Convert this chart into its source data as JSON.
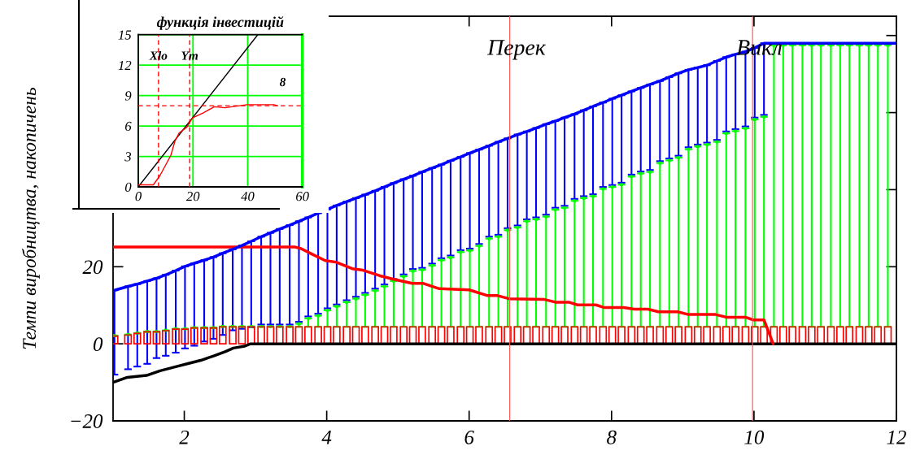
{
  "chart_data": [
    {
      "type": "line",
      "ylabel": "Темпи виробництва, накопичень",
      "xlim": [
        1,
        12
      ],
      "xticks": [
        2,
        4,
        6,
        8,
        10,
        12
      ],
      "ylim": [
        -20,
        85
      ],
      "yticks": [
        {
          "value": -20,
          "label": "−20"
        },
        0,
        20,
        {
          "value": 40,
          "label": null
        },
        {
          "value": 60,
          "label": null
        },
        {
          "value": 80,
          "label": null
        }
      ],
      "ref_lines": [
        {
          "axis": "x",
          "value": 6.57,
          "label": "Перек",
          "color": "#ff5050"
        },
        {
          "axis": "x",
          "value": 9.98,
          "label": "Викл",
          "color": "#ff5050"
        }
      ],
      "series": [
        {
          "type": "scatter",
          "marker": "square",
          "color": "#00ff00",
          "x": [
            1.02,
            1.21,
            1.34,
            1.48,
            1.61,
            1.74,
            1.88,
            2.01,
            2.14,
            2.28,
            2.41,
            2.54,
            2.68,
            2.81,
            2.94,
            3.08,
            3.21,
            3.34,
            3.48,
            3.61,
            3.74,
            3.88,
            4.01,
            4.14,
            4.28,
            4.41,
            4.54,
            4.68,
            4.81,
            4.94,
            5.08,
            5.21,
            5.34,
            5.48,
            5.61,
            5.74,
            5.88,
            6.01,
            6.14,
            6.28,
            6.41,
            6.54,
            6.68,
            6.81,
            6.94,
            7.08,
            7.21,
            7.34,
            7.48,
            7.61,
            7.74,
            7.88,
            8.01,
            8.14,
            8.28,
            8.41,
            8.54,
            8.68,
            8.81,
            8.94,
            9.08,
            9.21,
            9.34,
            9.48,
            9.61,
            9.74,
            9.88,
            10.01,
            10.14,
            10.28,
            10.41,
            10.54,
            10.68,
            10.81,
            10.94,
            11.08,
            11.21,
            11.34,
            11.48,
            11.61,
            11.74,
            11.88
          ],
          "values": [
            2.1,
            2.4,
            2.8,
            3.2,
            3.2,
            3.5,
            3.9,
            3.9,
            4.2,
            4.2,
            4.2,
            4.5,
            4.5,
            4.5,
            4.5,
            4.5,
            4.5,
            4.5,
            4.5,
            5.2,
            6.6,
            7.3,
            8.7,
            9.7,
            10.8,
            11.7,
            12.7,
            13.8,
            14.9,
            16.3,
            17.5,
            18.9,
            19.2,
            20.3,
            21.7,
            22.4,
            23.8,
            24.2,
            25.4,
            27.3,
            27.8,
            29.5,
            30.2,
            31.8,
            32.3,
            33.0,
            34.8,
            35.3,
            37.1,
            37.8,
            38.3,
            40.2,
            40.7,
            41.3,
            43.4,
            44.2,
            44.6,
            46.9,
            47.6,
            48.3,
            50.5,
            51.2,
            51.7,
            52.4,
            54.6,
            55.2,
            55.9,
            58.2,
            58.9,
            77.5,
            77.5,
            77.5,
            77.5,
            77.5,
            77.5,
            77.5,
            77.5,
            77.5,
            77.5,
            77.5,
            77.5,
            77.5
          ],
          "errors": [
            [
              2.0,
              2.1
            ],
            [
              2.3,
              2.4
            ],
            [
              2.7,
              2.8
            ],
            [
              3.1,
              3.2
            ],
            [
              3.1,
              3.2
            ],
            [
              3.4,
              3.5
            ],
            [
              3.8,
              3.9
            ],
            [
              3.8,
              3.9
            ],
            [
              4.1,
              4.2
            ],
            [
              4.1,
              4.2
            ],
            [
              4.1,
              4.2
            ],
            [
              4.4,
              4.5
            ],
            [
              4.4,
              4.5
            ],
            [
              4.4,
              4.5
            ],
            [
              4.4,
              4.5
            ],
            [
              4.4,
              4.5
            ],
            [
              4.4,
              4.5
            ],
            [
              4.4,
              4.5
            ],
            [
              4.4,
              4.5
            ],
            [
              4.4,
              5.2
            ],
            [
              4.4,
              6.6
            ],
            [
              4.4,
              7.3
            ],
            [
              4.4,
              8.7
            ],
            [
              4.4,
              9.7
            ],
            [
              4.4,
              10.8
            ],
            [
              4.4,
              11.7
            ],
            [
              4.4,
              12.7
            ],
            [
              4.4,
              13.8
            ],
            [
              4.4,
              14.9
            ],
            [
              4.4,
              16.3
            ],
            [
              4.4,
              17.5
            ],
            [
              4.4,
              18.9
            ],
            [
              4.4,
              19.2
            ],
            [
              4.4,
              20.3
            ],
            [
              4.4,
              21.7
            ],
            [
              4.4,
              22.4
            ],
            [
              4.4,
              23.8
            ],
            [
              4.4,
              24.2
            ],
            [
              4.4,
              25.4
            ],
            [
              4.4,
              27.3
            ],
            [
              4.4,
              27.8
            ],
            [
              4.4,
              29.5
            ],
            [
              4.4,
              30.2
            ],
            [
              4.4,
              31.8
            ],
            [
              4.4,
              32.3
            ],
            [
              4.4,
              33.0
            ],
            [
              4.4,
              34.8
            ],
            [
              4.4,
              35.3
            ],
            [
              4.4,
              37.1
            ],
            [
              4.4,
              37.8
            ],
            [
              4.4,
              38.3
            ],
            [
              4.4,
              40.2
            ],
            [
              4.4,
              40.7
            ],
            [
              4.4,
              41.3
            ],
            [
              4.4,
              43.4
            ],
            [
              4.4,
              44.2
            ],
            [
              4.4,
              44.6
            ],
            [
              4.4,
              46.9
            ],
            [
              4.4,
              47.6
            ],
            [
              4.4,
              48.3
            ],
            [
              4.4,
              50.5
            ],
            [
              4.4,
              51.2
            ],
            [
              4.4,
              51.7
            ],
            [
              4.4,
              52.4
            ],
            [
              4.4,
              54.6
            ],
            [
              4.4,
              55.2
            ],
            [
              4.4,
              55.9
            ],
            [
              4.4,
              58.2
            ],
            [
              4.4,
              58.9
            ],
            [
              4.4,
              77.5
            ],
            [
              4.4,
              77.5
            ],
            [
              4.4,
              77.5
            ],
            [
              4.4,
              77.5
            ],
            [
              4.4,
              77.5
            ],
            [
              4.4,
              77.5
            ],
            [
              4.4,
              77.5
            ],
            [
              4.4,
              77.5
            ],
            [
              4.4,
              77.5
            ],
            [
              4.4,
              77.5
            ],
            [
              4.4,
              77.5
            ],
            [
              4.4,
              77.5
            ],
            [
              4.4,
              77.5
            ]
          ]
        },
        {
          "type": "bar",
          "color": "#ff0000",
          "x": [
            1.02,
            1.21,
            1.34,
            1.48,
            1.61,
            1.74,
            1.88,
            2.01,
            2.14,
            2.28,
            2.41,
            2.54,
            2.68,
            2.81,
            2.94,
            3.08,
            3.21,
            3.34,
            3.48,
            3.61,
            3.74,
            3.88,
            4.01,
            4.14,
            4.28,
            4.41,
            4.54,
            4.68,
            4.81,
            4.94,
            5.08,
            5.21,
            5.34,
            5.48,
            5.61,
            5.74,
            5.88,
            6.01,
            6.14,
            6.28,
            6.41,
            6.54,
            6.68,
            6.81,
            6.94,
            7.08,
            7.21,
            7.34,
            7.48,
            7.61,
            7.74,
            7.88,
            8.01,
            8.14,
            8.28,
            8.41,
            8.54,
            8.68,
            8.81,
            8.94,
            9.08,
            9.21,
            9.34,
            9.48,
            9.61,
            9.74,
            9.88,
            10.01,
            10.14,
            10.28,
            10.41,
            10.54,
            10.68,
            10.81,
            10.94,
            11.08,
            11.21,
            11.34,
            11.48,
            11.61,
            11.74,
            11.88
          ],
          "values": [
            2.0,
            2.3,
            2.7,
            3.1,
            3.1,
            3.4,
            3.8,
            3.8,
            4.1,
            4.1,
            4.1,
            4.4,
            4.4,
            4.4,
            4.4,
            4.4,
            4.4,
            4.4,
            4.4,
            4.4,
            4.4,
            4.4,
            4.4,
            4.4,
            4.4,
            4.4,
            4.4,
            4.4,
            4.4,
            4.4,
            4.4,
            4.4,
            4.4,
            4.4,
            4.4,
            4.4,
            4.4,
            4.4,
            4.4,
            4.4,
            4.4,
            4.4,
            4.4,
            4.4,
            4.4,
            4.4,
            4.4,
            4.4,
            4.4,
            4.4,
            4.4,
            4.4,
            4.4,
            4.4,
            4.4,
            4.4,
            4.4,
            4.4,
            4.4,
            4.4,
            4.4,
            4.4,
            4.4,
            4.4,
            4.4,
            4.4,
            4.4,
            4.4,
            4.4,
            4.4,
            4.4,
            4.4,
            4.4,
            4.4,
            4.4,
            4.4,
            4.4,
            4.4,
            4.4,
            4.4,
            4.4,
            4.4
          ]
        },
        {
          "type": "line",
          "color": "#000000",
          "x": [
            1.0,
            1.2,
            1.47,
            1.66,
            1.89,
            2.04,
            2.23,
            2.42,
            2.58,
            2.69,
            2.85,
            2.93,
            12
          ],
          "values": [
            -10.0,
            -8.7,
            -8.2,
            -7.0,
            -5.9,
            -5.2,
            -4.3,
            -3.1,
            -2.0,
            -1.1,
            -0.6,
            0,
            0
          ]
        },
        {
          "type": "line",
          "color": "#ff0000",
          "x": [
            1.0,
            3.56,
            3.64,
            3.79,
            3.98,
            4.13,
            4.36,
            4.51,
            4.74,
            4.93,
            5.2,
            5.35,
            5.58,
            6.0,
            6.26,
            6.4,
            6.56,
            7.06,
            7.21,
            7.4,
            7.52,
            7.78,
            7.9,
            8.17,
            8.32,
            8.51,
            8.66,
            8.93,
            9.08,
            9.46,
            9.61,
            9.88,
            9.99,
            10.14,
            10.27
          ],
          "values": [
            25.1,
            25.1,
            24.7,
            23.3,
            21.6,
            21.2,
            19.5,
            19.1,
            17.7,
            16.8,
            15.7,
            15.7,
            14.3,
            14.0,
            12.5,
            12.5,
            11.7,
            11.5,
            10.8,
            10.8,
            10.1,
            10.1,
            9.4,
            9.4,
            9.0,
            9.0,
            8.3,
            8.3,
            7.6,
            7.6,
            6.9,
            6.9,
            6.2,
            6.2,
            0
          ]
        },
        {
          "type": "line",
          "color": "#0000ff",
          "x": [
            1.02,
            1.21,
            1.34,
            1.48,
            1.61,
            1.74,
            1.88,
            2.01,
            2.14,
            2.28,
            2.41,
            2.54,
            2.68,
            2.81,
            2.94,
            3.08,
            3.21,
            3.34,
            3.48,
            3.61,
            3.74,
            3.88,
            4.01,
            4.14,
            4.28,
            4.41,
            4.54,
            4.68,
            4.81,
            4.94,
            5.08,
            5.21,
            5.34,
            5.48,
            5.61,
            5.74,
            5.88,
            6.01,
            6.14,
            6.28,
            6.41,
            6.54,
            6.68,
            6.81,
            6.94,
            7.08,
            7.21,
            7.34,
            7.48,
            7.61,
            7.74,
            7.88,
            8.01,
            8.14,
            8.28,
            8.41,
            8.54,
            8.68,
            8.81,
            8.94,
            9.08,
            9.21,
            9.34,
            9.48,
            9.61,
            9.74,
            9.88,
            10.01,
            10.14,
            10.28,
            10.41,
            10.54,
            10.68,
            10.81,
            10.94,
            11.08,
            11.21,
            11.34,
            11.48,
            11.61,
            11.74,
            11.88,
            12
          ],
          "values": [
            13.9,
            14.9,
            15.5,
            16.3,
            17.0,
            17.9,
            19.0,
            20.1,
            20.9,
            21.7,
            22.5,
            23.5,
            24.5,
            25.5,
            26.6,
            27.8,
            28.8,
            29.8,
            30.8,
            31.8,
            32.8,
            33.9,
            34.9,
            35.9,
            36.9,
            37.8,
            38.7,
            39.7,
            40.7,
            41.7,
            42.7,
            43.6,
            44.6,
            45.6,
            46.5,
            47.5,
            48.5,
            49.5,
            50.4,
            51.4,
            52.4,
            53.3,
            54.3,
            55.1,
            56.0,
            57.0,
            57.8,
            58.7,
            59.6,
            60.6,
            61.6,
            62.6,
            63.6,
            64.5,
            65.5,
            66.4,
            67.3,
            68.2,
            69.2,
            70.2,
            71.1,
            71.7,
            72.3,
            73.4,
            74.4,
            75.1,
            75.8,
            76.8,
            78.0,
            78.0,
            78.0,
            78.0,
            78.0,
            78.0,
            78.0,
            78.0,
            78.0,
            78.0,
            78.0,
            78.0,
            78.0,
            78.0,
            78.0
          ],
          "errors": [
            [
              -8.0,
              13.9
            ],
            [
              -6.6,
              14.9
            ],
            [
              -5.9,
              15.5
            ],
            [
              -5.2,
              16.3
            ],
            [
              -3.7,
              17.0
            ],
            [
              -3.1,
              17.9
            ],
            [
              -2.3,
              19.0
            ],
            [
              -1.2,
              20.1
            ],
            [
              -0.5,
              20.9
            ],
            [
              0.6,
              21.7
            ],
            [
              1.3,
              22.5
            ],
            [
              2.3,
              23.5
            ],
            [
              3.5,
              24.5
            ],
            [
              3.9,
              25.5
            ],
            [
              4.3,
              26.6
            ],
            [
              5.0,
              27.8
            ],
            [
              5.0,
              28.8
            ],
            [
              5.0,
              29.8
            ],
            [
              5.0,
              30.8
            ],
            [
              5.7,
              31.8
            ],
            [
              7.1,
              32.8
            ],
            [
              7.8,
              33.9
            ],
            [
              9.2,
              34.9
            ],
            [
              10.2,
              35.9
            ],
            [
              11.3,
              36.9
            ],
            [
              12.2,
              37.8
            ],
            [
              13.2,
              38.7
            ],
            [
              14.3,
              39.7
            ],
            [
              15.4,
              40.7
            ],
            [
              16.8,
              41.7
            ],
            [
              18.0,
              42.7
            ],
            [
              19.4,
              43.6
            ],
            [
              19.7,
              44.6
            ],
            [
              20.8,
              45.6
            ],
            [
              22.2,
              46.5
            ],
            [
              22.9,
              47.5
            ],
            [
              24.3,
              48.5
            ],
            [
              24.7,
              49.5
            ],
            [
              25.9,
              50.4
            ],
            [
              27.8,
              51.4
            ],
            [
              28.3,
              52.4
            ],
            [
              30.0,
              53.3
            ],
            [
              30.7,
              54.3
            ],
            [
              32.3,
              55.1
            ],
            [
              32.8,
              56.0
            ],
            [
              33.5,
              57.0
            ],
            [
              35.3,
              57.8
            ],
            [
              35.8,
              58.7
            ],
            [
              37.6,
              59.6
            ],
            [
              38.3,
              60.6
            ],
            [
              38.8,
              61.6
            ],
            [
              40.7,
              62.6
            ],
            [
              41.2,
              63.6
            ],
            [
              41.8,
              64.5
            ],
            [
              43.9,
              65.5
            ],
            [
              44.7,
              66.4
            ],
            [
              45.1,
              67.3
            ],
            [
              47.4,
              68.2
            ],
            [
              48.1,
              69.2
            ],
            [
              48.8,
              70.2
            ],
            [
              51.0,
              71.1
            ],
            [
              51.7,
              71.7
            ],
            [
              52.2,
              72.3
            ],
            [
              52.9,
              73.4
            ],
            [
              55.1,
              74.4
            ],
            [
              55.7,
              75.1
            ],
            [
              56.4,
              75.8
            ],
            [
              58.7,
              76.8
            ],
            [
              59.4,
              78.0
            ],
            null,
            null,
            null,
            null,
            null,
            null,
            null,
            null,
            null,
            null,
            null,
            null,
            null,
            null
          ]
        }
      ]
    },
    {
      "type": "line",
      "title": "функція інвестицій",
      "xlim": [
        0,
        60
      ],
      "xticks": [
        0,
        20,
        40,
        60
      ],
      "ylim": [
        0,
        15
      ],
      "yticks": [
        0,
        3,
        6,
        9,
        12,
        15
      ],
      "grid": true,
      "ref_lines": [
        {
          "axis": "x",
          "value": 7.4,
          "label": "Xlo",
          "color": "#ff0000",
          "line_style": "dashed"
        },
        {
          "axis": "x",
          "value": 18.8,
          "label": "Ym",
          "color": "#ff0000",
          "line_style": "dashed"
        },
        {
          "axis": "y",
          "value": 8,
          "label": "8",
          "color": "#ff0000",
          "line_style": "dashed"
        }
      ],
      "series": [
        {
          "color": "#000000",
          "x": [
            0,
            43.7
          ],
          "values": [
            0,
            15
          ]
        },
        {
          "color": "#ff0000",
          "x": [
            0,
            5.5,
            7.9,
            11.9,
            13.4,
            14.9,
            17.8,
            19.8,
            23.8,
            27.8,
            31.7,
            39.7,
            49.6,
            51
          ],
          "values": [
            0.2,
            0.2,
            1.1,
            3.1,
            4.5,
            5.3,
            5.9,
            6.8,
            7.3,
            7.9,
            7.8,
            8.1,
            8.1,
            8.0
          ]
        }
      ]
    }
  ]
}
